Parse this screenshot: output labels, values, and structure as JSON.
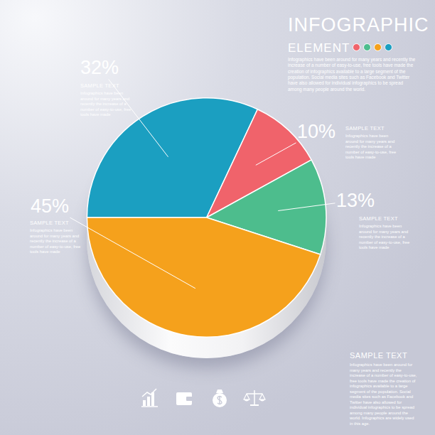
{
  "chart_data": {
    "type": "pie",
    "title": "INFOGRAPHIC",
    "subtitle": "ELEMENT",
    "description": "Infographics have been around for many years and recently the increase of a number of easy-to-use, free tools have made the creation of infographics available to a large segment of the population. Social media sites such as Facebook and Twitter have also allowed for individual infographics to be spread among many people around the world.",
    "values": [
      32,
      10,
      13,
      45
    ],
    "value_labels": [
      "32%",
      "10%",
      "13%",
      "45%"
    ],
    "colors": [
      "#1b9fc1",
      "#f0636b",
      "#4dbd8d",
      "#f5a11c"
    ],
    "data_labels": true,
    "notes": [
      {
        "heading": "SAMPLE TEXT",
        "text": "Infographics have been around for many years and recently the increase of a number of easy-to-use, free tools have made"
      },
      {
        "heading": "SAMPLE TEXT",
        "text": "Infographics have been around for many years and recently the increase of a number of easy-to-use, free tools have made"
      },
      {
        "heading": "SAMPLE TEXT",
        "text": "Infographics have been around for many years and recently the increase of a number of easy-to-use, free tools have made"
      },
      {
        "heading": "SAMPLE TEXT",
        "text": "Infographics have been around for many years and recently the increase of a number of easy-to-use, free tools have made"
      }
    ],
    "footer": {
      "heading": "SAMPLE TEXT",
      "text": "Infographics have been around for many years and recently the increase of a number of easy-to-use, free tools have made the creation of infographics available to a large segment of the population. Social media sites such as Facebook and Twitter have also allowed for individual infographics to be spread among many people around the world. Infographics are widely used in this age."
    }
  }
}
